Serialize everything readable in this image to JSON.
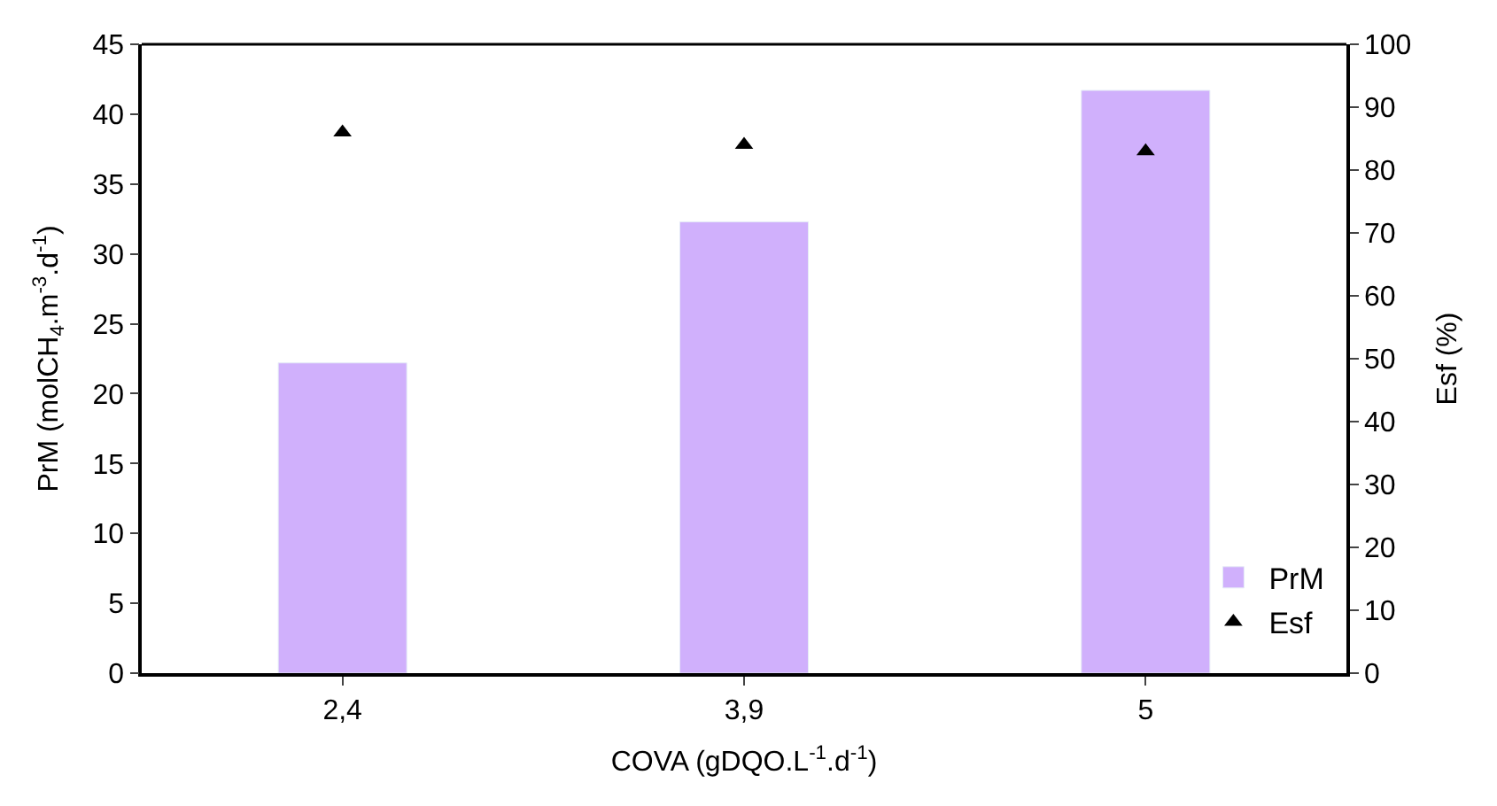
{
  "chart_data": {
    "type": "bar",
    "categories": [
      "2,4",
      "3,9",
      "5"
    ],
    "xlabel": "COVA (gDQO.L$^{-1}$.d$^{-1}$)",
    "ylabel": "PrM (molCH$_{4}$.m$^{-3}$.d$^{-1}$)",
    "y2label": "Esf (%)",
    "series": [
      {
        "name": "PrM",
        "color": "#d0b0fc",
        "values": [
          22.2,
          32.3,
          41.7
        ]
      },
      {
        "name": "Esf",
        "type": "scatter",
        "axis": "y2",
        "color": "#000000",
        "marker": "triangle",
        "values": [
          86,
          84,
          83
        ]
      }
    ],
    "ylim": [
      0,
      45
    ],
    "yticks": [
      0,
      5,
      10,
      15,
      20,
      25,
      30,
      35,
      40,
      45
    ],
    "y2lim": [
      0,
      100
    ],
    "y2ticks": [
      0,
      10,
      20,
      30,
      40,
      50,
      60,
      70,
      80,
      90,
      100
    ],
    "legend": "bottom right"
  }
}
